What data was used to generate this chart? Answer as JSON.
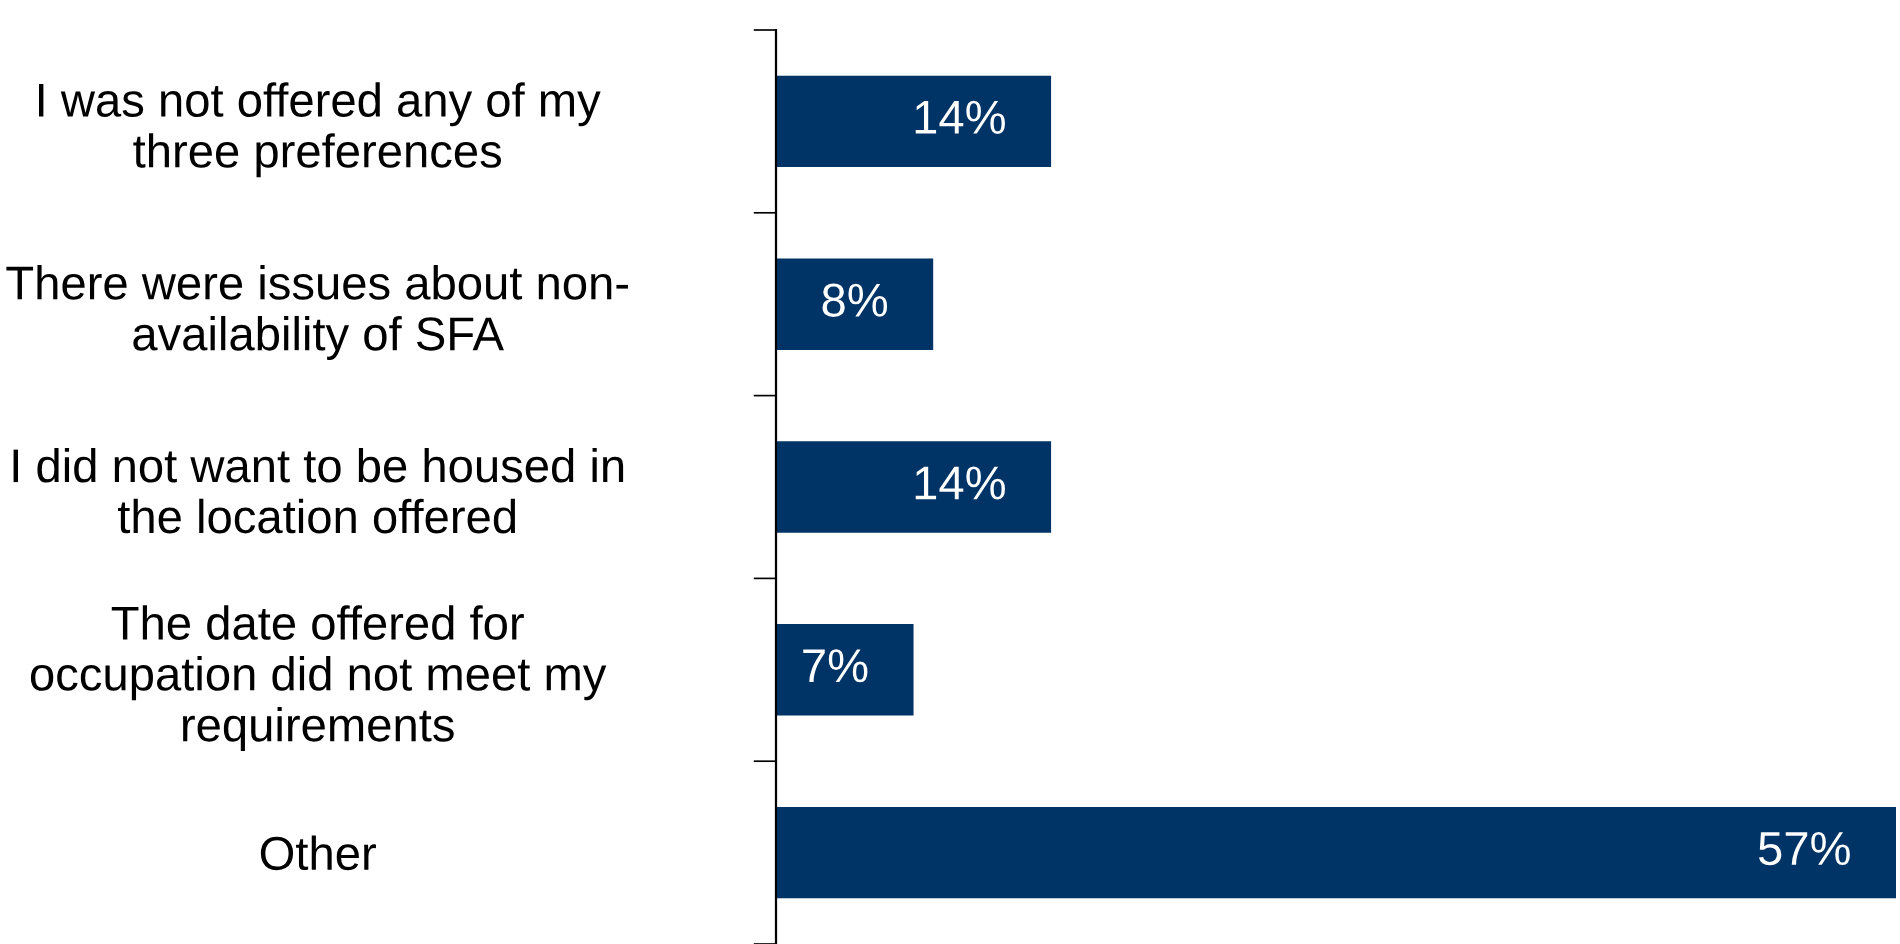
{
  "chart_data": {
    "type": "bar",
    "orientation": "horizontal",
    "categories": [
      "I was not offered any of my\nthree preferences",
      "There were issues about non-\navailability of SFA",
      "I did not want to be housed in\nthe location offered",
      "The date offered for\noccupation did not meet my\nrequirements",
      "Other"
    ],
    "values": [
      14,
      8,
      14,
      7,
      57
    ],
    "color": "#003366",
    "value_labels": [
      "14%",
      "8%",
      "14%",
      "7%",
      "57%"
    ],
    "grid": false,
    "legend": false
  }
}
